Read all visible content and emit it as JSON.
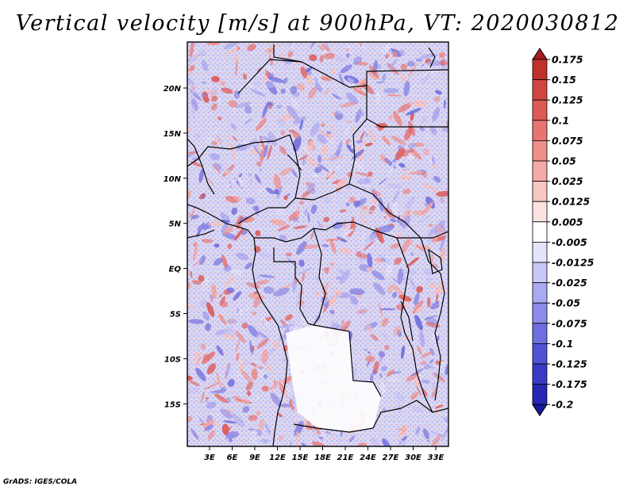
{
  "title": "Vertical velocity [m/s] at 900hPa, VT: 2020030812",
  "credit": "GrADS: IGES/COLA",
  "map": {
    "lon_labels": [
      "3E",
      "6E",
      "9E",
      "12E",
      "15E",
      "18E",
      "21E",
      "24E",
      "27E",
      "30E",
      "33E"
    ],
    "lat_labels": [
      "20N",
      "15N",
      "10N",
      "5N",
      "EQ",
      "5S",
      "10S",
      "15S"
    ]
  },
  "colorbar": {
    "levels": [
      "0.175",
      "0.15",
      "0.125",
      "0.1",
      "0.075",
      "0.05",
      "0.025",
      "0.0125",
      "0.005",
      "-0.005",
      "-0.0125",
      "-0.025",
      "-0.05",
      "-0.075",
      "-0.1",
      "-0.125",
      "-0.175",
      "-0.2"
    ],
    "colors": [
      "#a51c1c",
      "#c0312c",
      "#d04540",
      "#de5a55",
      "#e87470",
      "#ef8f8a",
      "#f4aaa6",
      "#f8c6c3",
      "#fce3e1",
      "#ffffff",
      "#e4e4fc",
      "#c8c8f8",
      "#aaaaf2",
      "#8c8cea",
      "#6e6ee0",
      "#5252d4",
      "#3a3ac6",
      "#2626b4",
      "#18189c"
    ]
  }
}
